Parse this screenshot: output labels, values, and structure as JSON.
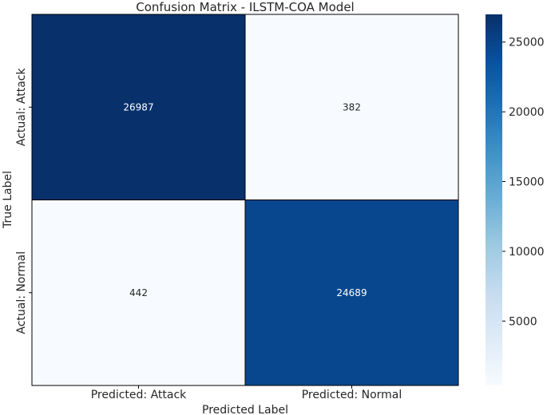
{
  "chart_data": {
    "type": "heatmap",
    "title": "Confusion Matrix - ILSTM-COA Model",
    "xlabel": "Predicted Label",
    "ylabel": "True Label",
    "x_categories": [
      "Predicted: Attack",
      "Predicted: Normal"
    ],
    "y_categories": [
      "Actual: Attack",
      "Actual: Normal"
    ],
    "values": [
      [
        26987,
        382
      ],
      [
        442,
        24689
      ]
    ],
    "colormap": "Blues",
    "colorbar": {
      "min": 382,
      "max": 26987,
      "ticks": [
        5000,
        10000,
        15000,
        20000,
        25000
      ]
    },
    "grid": false
  }
}
